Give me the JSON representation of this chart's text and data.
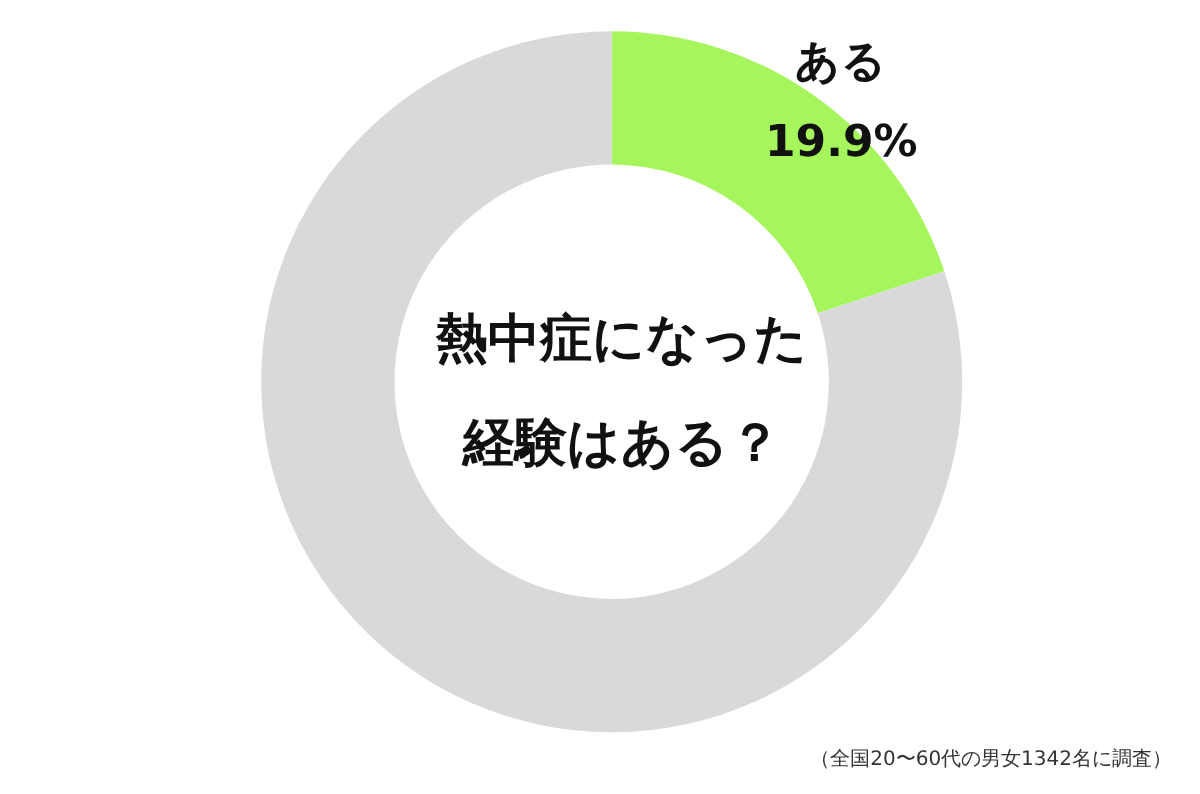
{
  "chart_data": {
    "type": "donut",
    "title": "熱中症になった経験はある？",
    "categories": [
      "ある",
      null
    ],
    "values": [
      19.9,
      80.1
    ],
    "colors": [
      "#a6f55c",
      "#d9d9d9"
    ],
    "value_labels": [
      "19.9%",
      null
    ],
    "legend": false,
    "annotations": [
      "（全国20〜60代の男女1342名に調査）"
    ]
  }
}
